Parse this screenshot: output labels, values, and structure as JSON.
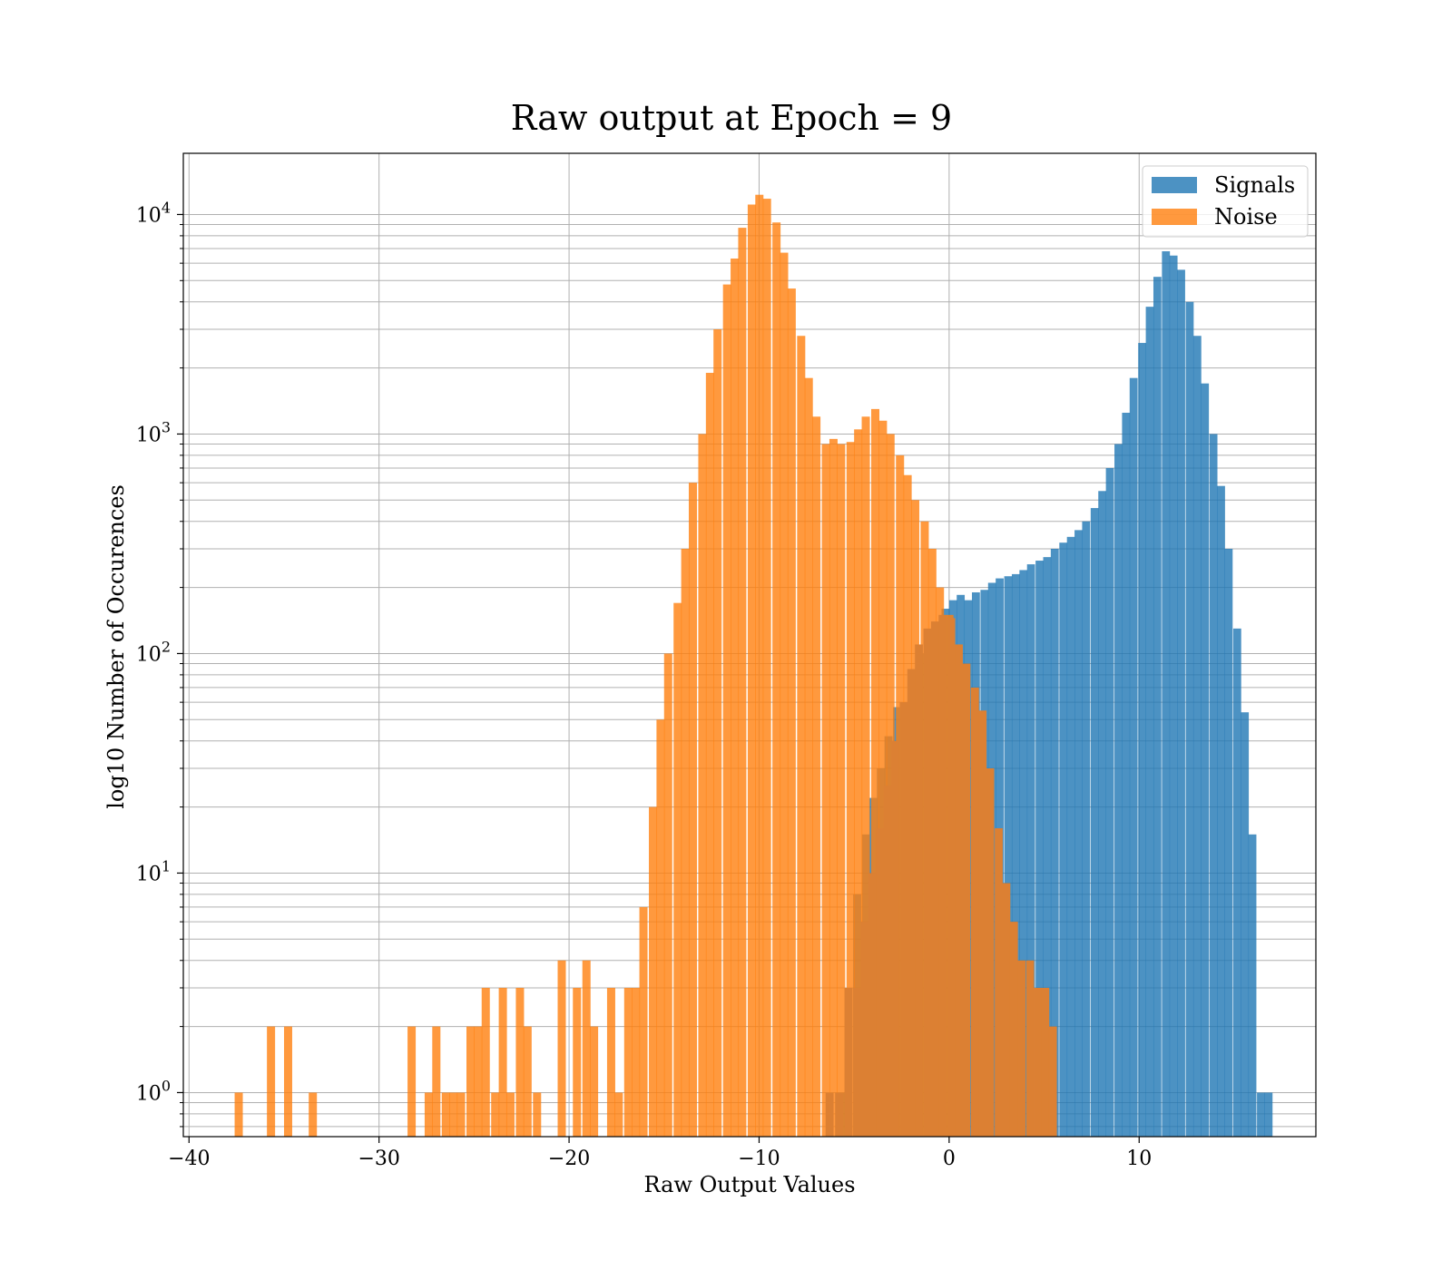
{
  "chart_data": {
    "type": "histogram",
    "title": "Raw output at Epoch = 9",
    "xlabel": "Raw Output Values",
    "ylabel": "log10 Number of Occurences",
    "xlim": [
      -40.3,
      19.3
    ],
    "ylim": [
      0.63,
      19000
    ],
    "yscale": "log",
    "grid": "on (major and minor)",
    "legend_position": "top-right",
    "x_ticks": [
      -40,
      -30,
      -20,
      -10,
      0,
      10
    ],
    "x_tick_labels": [
      "−40",
      "−30",
      "−20",
      "−10",
      "0",
      "10"
    ],
    "y_ticks": [
      1,
      10,
      100,
      1000,
      10000
    ],
    "y_tick_labels": [
      {
        "base": "10",
        "exp": "0"
      },
      {
        "base": "10",
        "exp": "1"
      },
      {
        "base": "10",
        "exp": "2"
      },
      {
        "base": "10",
        "exp": "3"
      },
      {
        "base": "10",
        "exp": "4"
      }
    ],
    "series": [
      {
        "name": "Signals",
        "color": "#1f77b4",
        "opacity": 0.8,
        "bin_width": 0.42,
        "bins": [
          [
            -5.9,
            1
          ],
          [
            -5.5,
            3
          ],
          [
            -5.05,
            8
          ],
          [
            -4.6,
            15
          ],
          [
            -4.2,
            22
          ],
          [
            -3.8,
            30
          ],
          [
            -3.4,
            42
          ],
          [
            -2.95,
            57
          ],
          [
            -2.5,
            60
          ],
          [
            -2.1,
            75
          ],
          [
            -1.7,
            100
          ],
          [
            -1.25,
            120
          ],
          [
            -0.8,
            135
          ],
          [
            -0.4,
            160
          ],
          [
            0,
            175
          ],
          [
            0.4,
            185
          ],
          [
            0.8,
            175
          ],
          [
            1.2,
            190
          ],
          [
            1.65,
            195
          ],
          [
            2.05,
            210
          ],
          [
            2.45,
            220
          ],
          [
            2.9,
            225
          ],
          [
            3.3,
            230
          ],
          [
            3.7,
            240
          ],
          [
            4.1,
            255
          ],
          [
            4.55,
            265
          ],
          [
            4.95,
            275
          ],
          [
            5.35,
            300
          ],
          [
            5.8,
            320
          ],
          [
            6.2,
            340
          ],
          [
            6.6,
            365
          ],
          [
            7.0,
            400
          ],
          [
            7.45,
            460
          ],
          [
            7.85,
            550
          ],
          [
            8.25,
            700
          ],
          [
            8.7,
            900
          ],
          [
            9.1,
            1250
          ],
          [
            9.5,
            1800
          ],
          [
            9.95,
            2600
          ],
          [
            10.35,
            3800
          ],
          [
            10.75,
            5200
          ],
          [
            11.2,
            6800
          ],
          [
            11.6,
            6500
          ],
          [
            12.0,
            5600
          ],
          [
            12.45,
            4000
          ],
          [
            12.85,
            2800
          ],
          [
            13.25,
            1700
          ],
          [
            13.7,
            1000
          ],
          [
            14.1,
            580
          ],
          [
            14.5,
            300
          ],
          [
            14.95,
            130
          ],
          [
            15.35,
            54
          ],
          [
            15.75,
            15
          ],
          [
            16.2,
            1
          ],
          [
            16.6,
            1
          ]
        ]
      },
      {
        "name": "Noise",
        "color": "#ff7f0e",
        "opacity": 0.8,
        "bin_width": 0.43,
        "bins": [
          [
            -37.6,
            1
          ],
          [
            -35.9,
            2
          ],
          [
            -35.0,
            2
          ],
          [
            -33.7,
            1
          ],
          [
            -28.5,
            2
          ],
          [
            -27.6,
            1
          ],
          [
            -27.2,
            2
          ],
          [
            -26.7,
            1
          ],
          [
            -26.3,
            1
          ],
          [
            -25.9,
            1
          ],
          [
            -25.4,
            2
          ],
          [
            -25.0,
            2
          ],
          [
            -24.6,
            3
          ],
          [
            -24.1,
            1
          ],
          [
            -23.7,
            3
          ],
          [
            -23.3,
            1
          ],
          [
            -22.8,
            3
          ],
          [
            -22.4,
            2
          ],
          [
            -21.9,
            1
          ],
          [
            -20.6,
            4
          ],
          [
            -19.8,
            3
          ],
          [
            -19.3,
            4
          ],
          [
            -18.9,
            2
          ],
          [
            -18.0,
            3
          ],
          [
            -17.6,
            1
          ],
          [
            -17.1,
            3
          ],
          [
            -16.7,
            3
          ],
          [
            -16.3,
            7
          ],
          [
            -15.8,
            20
          ],
          [
            -15.4,
            50
          ],
          [
            -15.0,
            100
          ],
          [
            -14.5,
            170
          ],
          [
            -14.1,
            300
          ],
          [
            -13.7,
            600
          ],
          [
            -13.2,
            1000
          ],
          [
            -12.8,
            1900
          ],
          [
            -12.4,
            3000
          ],
          [
            -11.9,
            4800
          ],
          [
            -11.5,
            6300
          ],
          [
            -11.1,
            8700
          ],
          [
            -10.6,
            11100
          ],
          [
            -10.2,
            12300
          ],
          [
            -9.8,
            11800
          ],
          [
            -9.3,
            9200
          ],
          [
            -8.9,
            6700
          ],
          [
            -8.5,
            4600
          ],
          [
            -8.0,
            2800
          ],
          [
            -7.6,
            1800
          ],
          [
            -7.2,
            1200
          ],
          [
            -6.7,
            900
          ],
          [
            -6.3,
            950
          ],
          [
            -5.9,
            900
          ],
          [
            -5.4,
            920
          ],
          [
            -5.0,
            1050
          ],
          [
            -4.6,
            1200
          ],
          [
            -4.1,
            1300
          ],
          [
            -3.7,
            1150
          ],
          [
            -3.3,
            1000
          ],
          [
            -2.8,
            800
          ],
          [
            -2.4,
            650
          ],
          [
            -2.0,
            500
          ],
          [
            -1.5,
            400
          ],
          [
            -1.1,
            300
          ],
          [
            -0.7,
            200
          ],
          [
            -0.2,
            150
          ]
        ]
      },
      {
        "name": "",
        "color": "#dc8033",
        "opacity": 1,
        "bin_width": 0.42,
        "bins": [
          [
            -6.5,
            1
          ],
          [
            -6.0,
            1
          ],
          [
            -5.5,
            3
          ],
          [
            -5.05,
            3
          ],
          [
            -4.65,
            6
          ],
          [
            -4.25,
            10
          ],
          [
            -3.85,
            16
          ],
          [
            -3.45,
            25
          ],
          [
            -3.05,
            40
          ],
          [
            -2.6,
            60
          ],
          [
            -2.2,
            85
          ],
          [
            -1.8,
            110
          ],
          [
            -1.35,
            130
          ],
          [
            -0.95,
            140
          ],
          [
            -0.55,
            150
          ],
          [
            -0.1,
            145
          ],
          [
            0.3,
            110
          ],
          [
            0.7,
            90
          ],
          [
            1.15,
            70
          ],
          [
            1.55,
            55
          ],
          [
            1.95,
            30
          ],
          [
            2.4,
            16
          ],
          [
            2.8,
            9
          ],
          [
            3.2,
            6
          ],
          [
            3.6,
            4
          ],
          [
            4.05,
            4
          ],
          [
            4.45,
            3
          ],
          [
            4.85,
            3
          ],
          [
            5.25,
            2
          ]
        ]
      }
    ]
  }
}
